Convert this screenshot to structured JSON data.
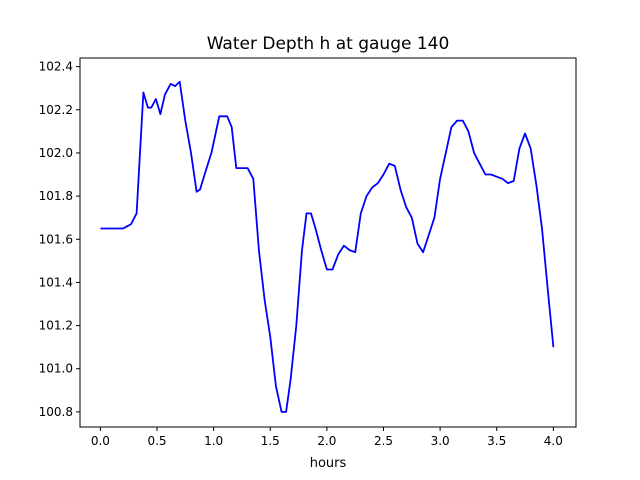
{
  "chart_data": {
    "type": "line",
    "title": "Water Depth h at gauge 140",
    "xlabel": "hours",
    "ylabel": "",
    "xlim": [
      -0.18,
      4.2
    ],
    "ylim": [
      100.73,
      102.44
    ],
    "xticks": [
      0.0,
      0.5,
      1.0,
      1.5,
      2.0,
      2.5,
      3.0,
      3.5,
      4.0
    ],
    "yticks": [
      100.8,
      101.0,
      101.2,
      101.4,
      101.6,
      101.8,
      102.0,
      102.2,
      102.4
    ],
    "xtick_labels": [
      "0.0",
      "0.5",
      "1.0",
      "1.5",
      "2.0",
      "2.5",
      "3.0",
      "3.5",
      "4.0"
    ],
    "ytick_labels": [
      "100.8",
      "101.0",
      "101.2",
      "101.4",
      "101.6",
      "101.8",
      "102.0",
      "102.2",
      "102.4"
    ],
    "grid": false,
    "legend": "none",
    "series": [
      {
        "color": "#0000ff",
        "x": [
          0.0,
          0.1,
          0.2,
          0.27,
          0.32,
          0.35,
          0.38,
          0.42,
          0.45,
          0.49,
          0.53,
          0.57,
          0.62,
          0.66,
          0.7,
          0.75,
          0.8,
          0.85,
          0.88,
          0.92,
          0.98,
          1.05,
          1.09,
          1.12,
          1.16,
          1.2,
          1.25,
          1.3,
          1.35,
          1.4,
          1.45,
          1.5,
          1.55,
          1.6,
          1.64,
          1.68,
          1.73,
          1.78,
          1.82,
          1.86,
          1.9,
          1.95,
          2.0,
          2.05,
          2.1,
          2.15,
          2.2,
          2.25,
          2.3,
          2.35,
          2.4,
          2.45,
          2.5,
          2.55,
          2.6,
          2.65,
          2.7,
          2.75,
          2.8,
          2.85,
          2.9,
          2.95,
          3.0,
          3.05,
          3.1,
          3.15,
          3.2,
          3.25,
          3.3,
          3.35,
          3.4,
          3.45,
          3.5,
          3.55,
          3.6,
          3.65,
          3.7,
          3.75,
          3.8,
          3.85,
          3.9,
          3.95,
          4.0
        ],
        "values": [
          101.65,
          101.65,
          101.65,
          101.67,
          101.72,
          102.0,
          102.28,
          102.21,
          102.21,
          102.25,
          102.18,
          102.27,
          102.32,
          102.31,
          102.33,
          102.15,
          102.0,
          101.82,
          101.83,
          101.9,
          102.0,
          102.17,
          102.17,
          102.17,
          102.12,
          101.93,
          101.93,
          101.93,
          101.88,
          101.55,
          101.32,
          101.15,
          100.92,
          100.8,
          100.8,
          100.95,
          101.2,
          101.55,
          101.72,
          101.72,
          101.65,
          101.55,
          101.46,
          101.46,
          101.53,
          101.57,
          101.55,
          101.54,
          101.72,
          101.8,
          101.84,
          101.86,
          101.9,
          101.95,
          101.94,
          101.83,
          101.75,
          101.7,
          101.58,
          101.54,
          101.62,
          101.7,
          101.88,
          102.0,
          102.12,
          102.15,
          102.15,
          102.1,
          102.0,
          101.95,
          101.9,
          101.9,
          101.89,
          101.88,
          101.86,
          101.87,
          102.02,
          102.09,
          102.02,
          101.85,
          101.65,
          101.37,
          101.1
        ]
      }
    ]
  }
}
